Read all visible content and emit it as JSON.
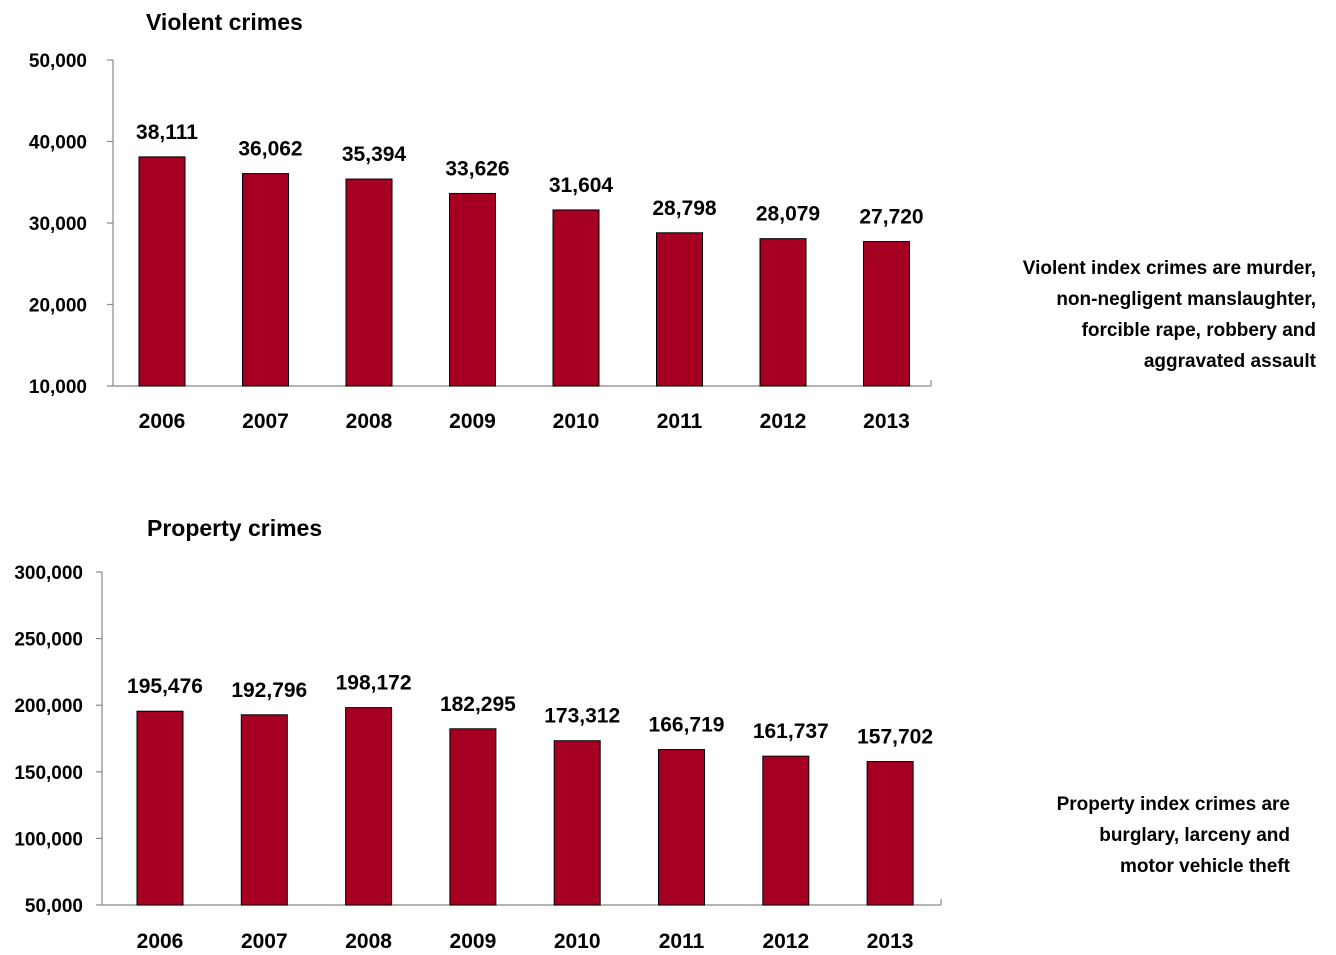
{
  "chart_data": [
    {
      "type": "bar",
      "title": "Violent crimes",
      "categories": [
        "2006",
        "2007",
        "2008",
        "2009",
        "2010",
        "2011",
        "2012",
        "2013"
      ],
      "values": [
        38111,
        36062,
        35394,
        33626,
        31604,
        28798,
        28079,
        27720
      ],
      "value_labels": [
        "38,111",
        "36,062",
        "35,394",
        "33,626",
        "31,604",
        "28,798",
        "28,079",
        "27,720"
      ],
      "ylim": [
        10000,
        50000
      ],
      "yticks": [
        10000,
        20000,
        30000,
        40000,
        50000
      ],
      "ytick_labels": [
        "10,000",
        "20,000",
        "30,000",
        "40,000",
        "50,000"
      ],
      "xlabel": "",
      "ylabel": "",
      "grid": false,
      "legend": "none",
      "bar_color": "#a50021",
      "note": [
        "Violent index crimes are murder,",
        "non-negligent manslaughter,",
        "forcible rape, robbery and",
        "aggravated assault"
      ]
    },
    {
      "type": "bar",
      "title": "Property crimes",
      "categories": [
        "2006",
        "2007",
        "2008",
        "2009",
        "2010",
        "2011",
        "2012",
        "2013"
      ],
      "values": [
        195476,
        192796,
        198172,
        182295,
        173312,
        166719,
        161737,
        157702
      ],
      "value_labels": [
        "195,476",
        "192,796",
        "198,172",
        "182,295",
        "173,312",
        "166,719",
        "161,737",
        "157,702"
      ],
      "ylim": [
        50000,
        300000
      ],
      "yticks": [
        50000,
        100000,
        150000,
        200000,
        250000,
        300000
      ],
      "ytick_labels": [
        "50,000",
        "100,000",
        "150,000",
        "200,000",
        "250,000",
        "300,000"
      ],
      "xlabel": "",
      "ylabel": "",
      "grid": false,
      "legend": "none",
      "bar_color": "#a50021",
      "note": [
        "Property index crimes are",
        "burglary, larceny and",
        "motor vehicle theft"
      ]
    }
  ]
}
